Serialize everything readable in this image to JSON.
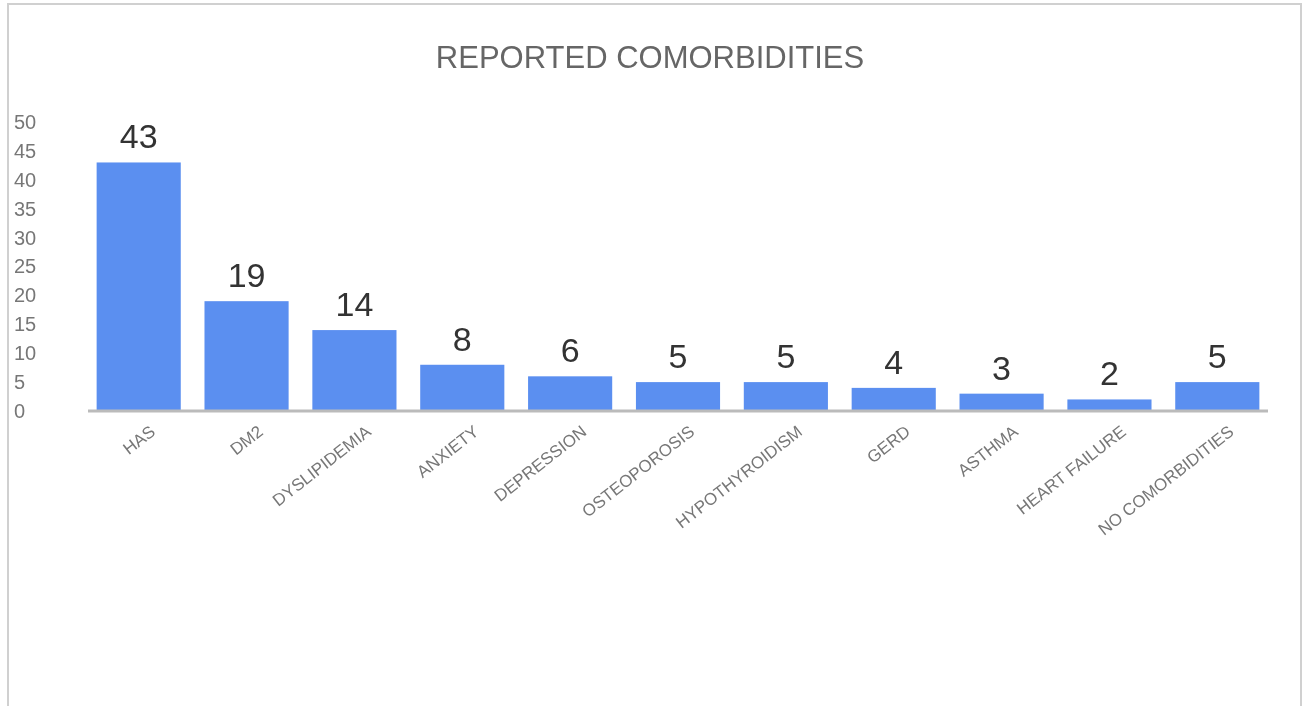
{
  "chart_data": {
    "type": "bar",
    "title": "REPORTED COMORBIDITIES",
    "categories": [
      "HAS",
      "DM2",
      "DYSLIPIDEMIA",
      "ANXIETY",
      "DEPRESSION",
      "OSTEOPOROSIS",
      "HYPOTHYROIDISM",
      "GERD",
      "ASTHMA",
      "HEART FAILURE",
      "NO COMORBIDITIES"
    ],
    "values": [
      43,
      19,
      14,
      8,
      6,
      5,
      5,
      4,
      3,
      2,
      5
    ],
    "color": "#5b8ff0",
    "ylim": [
      0,
      50
    ],
    "yticks": [
      0,
      5,
      10,
      15,
      20,
      25,
      30,
      35,
      40,
      45,
      50
    ],
    "data_labels": true,
    "grid": false
  }
}
